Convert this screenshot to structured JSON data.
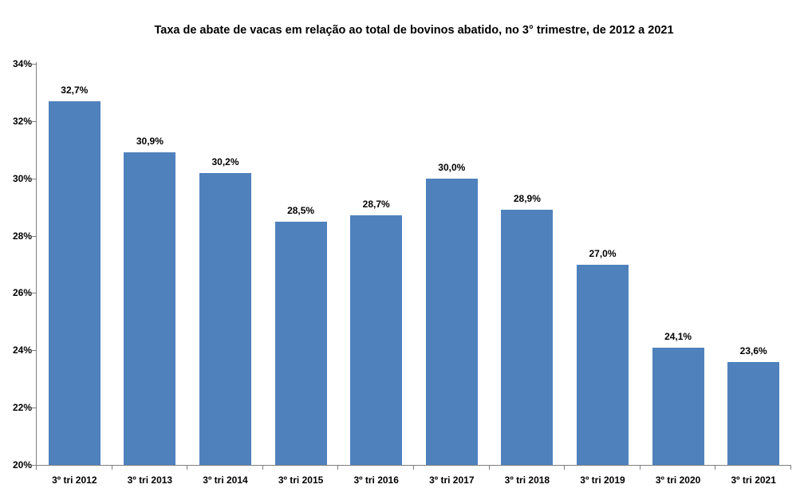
{
  "chart_data": {
    "type": "bar",
    "title": "Taxa de abate de vacas em relação ao total de bovinos abatido, no 3° trimestre, de 2012 a 2021",
    "categories": [
      "3º tri 2012",
      "3º tri 2013",
      "3º tri 2014",
      "3º tri 2015",
      "3º tri 2016",
      "3º tri 2017",
      "3º tri 2018",
      "3º tri 2019",
      "3º tri 2020",
      "3º tri 2021"
    ],
    "values": [
      32.7,
      30.9,
      30.2,
      28.5,
      28.7,
      30.0,
      28.9,
      27.0,
      24.1,
      23.6
    ],
    "data_labels": [
      "32,7%",
      "30,9%",
      "30,2%",
      "28,5%",
      "28,7%",
      "30,0%",
      "28,9%",
      "27,0%",
      "24,1%",
      "23,6%"
    ],
    "xlabel": "",
    "ylabel": "",
    "ylim": [
      20,
      34
    ],
    "ytick_step": 2,
    "ytick_labels": [
      "20%",
      "22%",
      "24%",
      "26%",
      "28%",
      "30%",
      "32%",
      "34%"
    ],
    "grid": false,
    "legend": null,
    "colors": {
      "bar": "#4F81BD",
      "axis": "#808080",
      "text": "#000000",
      "background": "#FFFFFF"
    }
  }
}
